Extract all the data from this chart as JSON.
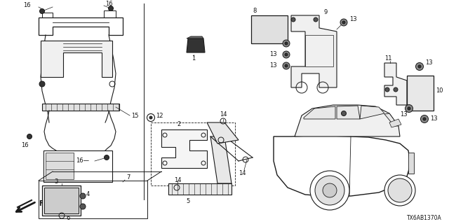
{
  "bg_color": "#ffffff",
  "line_color": "#1a1a1a",
  "text_color": "#111111",
  "diagram_code": "TX6AB1370A",
  "figsize": [
    6.4,
    3.2
  ],
  "dpi": 100
}
